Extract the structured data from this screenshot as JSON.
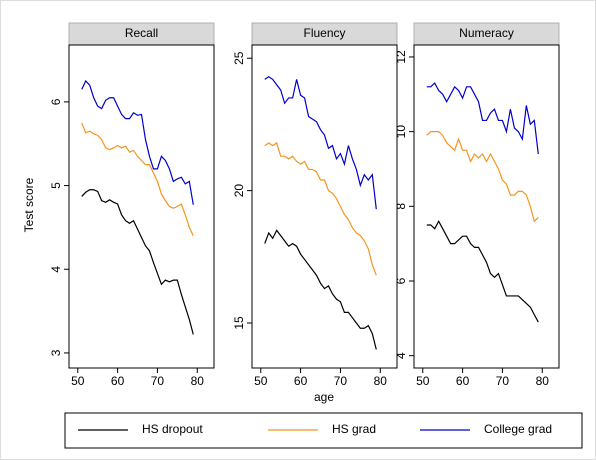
{
  "chart_data": [
    {
      "type": "line",
      "title": "Recall",
      "ylabel": "Test score",
      "x": [
        51,
        52,
        53,
        54,
        55,
        56,
        57,
        58,
        59,
        60,
        61,
        62,
        63,
        64,
        65,
        66,
        67,
        68,
        69,
        70,
        71,
        72,
        73,
        74,
        75,
        76,
        77,
        78,
        79
      ],
      "xlim": [
        47.8,
        84.2
      ],
      "xticks": [
        50,
        60,
        70,
        80
      ],
      "ylim": [
        2.82,
        6.68
      ],
      "yticks": [
        3,
        4,
        5,
        6
      ],
      "series": [
        {
          "name": "HS dropout",
          "color": "#000000",
          "values": [
            4.87,
            4.92,
            4.95,
            4.95,
            4.93,
            4.82,
            4.8,
            4.83,
            4.8,
            4.78,
            4.65,
            4.58,
            4.55,
            4.58,
            4.48,
            4.38,
            4.28,
            4.22,
            4.08,
            3.95,
            3.82,
            3.87,
            3.85,
            3.87,
            3.87,
            3.7,
            3.55,
            3.4,
            3.22
          ]
        },
        {
          "name": "HS grad",
          "color": "#f7941d",
          "values": [
            5.75,
            5.63,
            5.65,
            5.62,
            5.6,
            5.55,
            5.45,
            5.43,
            5.45,
            5.48,
            5.45,
            5.47,
            5.4,
            5.42,
            5.35,
            5.3,
            5.25,
            5.25,
            5.15,
            5.05,
            4.9,
            4.82,
            4.75,
            4.73,
            4.75,
            4.78,
            4.65,
            4.5,
            4.4
          ]
        },
        {
          "name": "College grad",
          "color": "#0000cc",
          "values": [
            6.15,
            6.25,
            6.2,
            6.05,
            5.95,
            5.92,
            6.02,
            6.05,
            6.05,
            5.95,
            5.85,
            5.8,
            5.8,
            5.87,
            5.84,
            5.85,
            5.55,
            5.35,
            5.2,
            5.2,
            5.35,
            5.3,
            5.2,
            5.05,
            5.08,
            5.1,
            5.02,
            5.05,
            4.77
          ]
        }
      ]
    },
    {
      "type": "line",
      "title": "Fluency",
      "xlabel": "age",
      "x": [
        51,
        52,
        53,
        54,
        55,
        56,
        57,
        58,
        59,
        60,
        61,
        62,
        63,
        64,
        65,
        66,
        67,
        68,
        69,
        70,
        71,
        72,
        73,
        74,
        75,
        76,
        77,
        78,
        79
      ],
      "xlim": [
        47.8,
        84.2
      ],
      "xticks": [
        50,
        60,
        70,
        80
      ],
      "ylim": [
        13.3,
        25.5
      ],
      "yticks": [
        15,
        20,
        25
      ],
      "series": [
        {
          "color": "#000000",
          "values": [
            18.0,
            18.4,
            18.2,
            18.5,
            18.3,
            18.1,
            17.9,
            18.0,
            17.9,
            17.6,
            17.4,
            17.2,
            17.0,
            16.8,
            16.5,
            16.3,
            16.4,
            16.1,
            15.9,
            15.8,
            15.4,
            15.4,
            15.2,
            15.0,
            14.8,
            14.8,
            14.9,
            14.6,
            14.0
          ]
        },
        {
          "color": "#f7941d",
          "values": [
            21.7,
            21.8,
            21.7,
            21.8,
            21.3,
            21.3,
            21.2,
            21.3,
            21.1,
            21.0,
            21.1,
            20.8,
            20.8,
            20.7,
            20.4,
            20.4,
            20.0,
            19.9,
            19.7,
            19.4,
            19.1,
            18.9,
            18.6,
            18.4,
            18.3,
            18.1,
            17.8,
            17.2,
            16.8
          ]
        },
        {
          "color": "#0000cc",
          "values": [
            24.2,
            24.3,
            24.2,
            24.0,
            23.8,
            23.3,
            23.5,
            23.5,
            24.2,
            23.6,
            23.5,
            22.8,
            22.7,
            22.6,
            22.3,
            22.1,
            21.6,
            21.7,
            21.2,
            21.4,
            21.0,
            21.7,
            21.2,
            20.8,
            20.2,
            20.6,
            20.4,
            20.6,
            19.3
          ]
        }
      ]
    },
    {
      "type": "line",
      "title": "Numeracy",
      "x": [
        51,
        52,
        53,
        54,
        55,
        56,
        57,
        58,
        59,
        60,
        61,
        62,
        63,
        64,
        65,
        66,
        67,
        68,
        69,
        70,
        71,
        72,
        73,
        74,
        75,
        76,
        77,
        78,
        79
      ],
      "xlim": [
        47.8,
        84.2
      ],
      "xticks": [
        50,
        60,
        70,
        80
      ],
      "ylim": [
        3.67,
        12.32
      ],
      "yticks": [
        4,
        6,
        8,
        10,
        12
      ],
      "series": [
        {
          "color": "#000000",
          "values": [
            7.5,
            7.5,
            7.4,
            7.6,
            7.4,
            7.2,
            7.0,
            7.0,
            7.1,
            7.2,
            7.2,
            7.0,
            6.9,
            6.9,
            6.7,
            6.5,
            6.2,
            6.1,
            6.2,
            5.9,
            5.6,
            5.6,
            5.6,
            5.6,
            5.5,
            5.4,
            5.3,
            5.1,
            4.9
          ]
        },
        {
          "color": "#f7941d",
          "values": [
            9.9,
            10.0,
            10.0,
            10.0,
            9.9,
            9.7,
            9.6,
            9.5,
            9.8,
            9.5,
            9.5,
            9.2,
            9.4,
            9.3,
            9.4,
            9.2,
            9.4,
            9.2,
            9.0,
            8.7,
            8.6,
            8.3,
            8.3,
            8.4,
            8.4,
            8.3,
            8.0,
            7.6,
            7.7
          ]
        },
        {
          "color": "#0000cc",
          "values": [
            11.2,
            11.2,
            11.3,
            11.1,
            11.0,
            10.8,
            11.0,
            11.2,
            11.1,
            10.9,
            11.2,
            11.2,
            11.0,
            10.8,
            10.3,
            10.3,
            10.5,
            10.6,
            10.3,
            10.3,
            10.0,
            10.6,
            10.1,
            10.0,
            9.8,
            10.7,
            10.2,
            10.3,
            9.4
          ]
        }
      ]
    }
  ]
}
